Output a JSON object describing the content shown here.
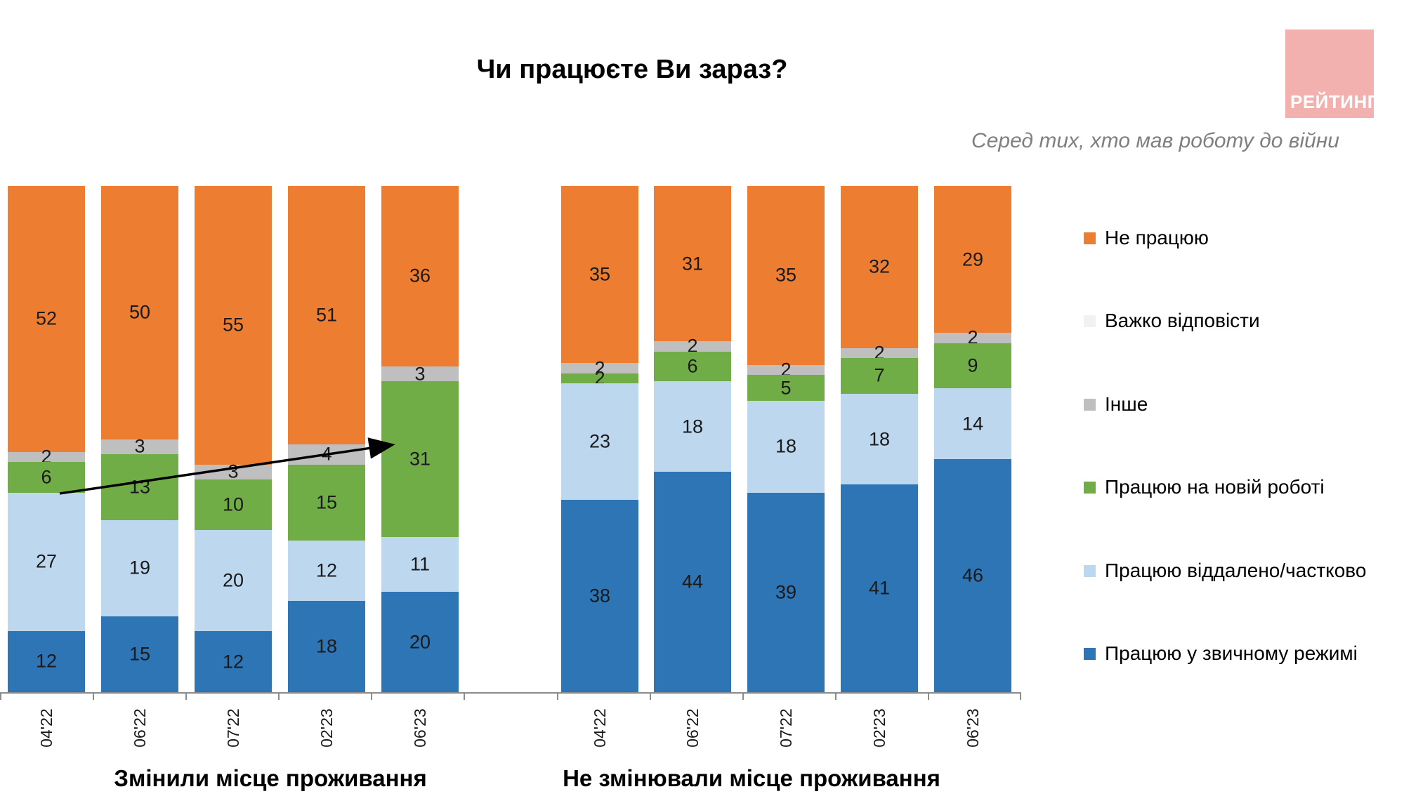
{
  "header": {
    "title": "Чи працюєте Ви зараз?",
    "subtitle": "Серед тих, хто мав роботу до війни",
    "logo_text": "РЕЙТИНГ"
  },
  "colors": {
    "not_working_orange": "#ED7D31",
    "hard_to_answer_white": "#F2F2F2",
    "other_gray": "#BFBFBF",
    "new_job_green": "#70AD47",
    "remote_light_blue": "#BDD7EE",
    "usual_blue": "#2E75B6",
    "logo_pink": "#F2B1AE",
    "subtitle_gray": "#7F7F7F",
    "axis_gray": "#8C8C8C"
  },
  "legend": [
    {
      "key": "not_working",
      "label": "Не працюю",
      "color": "#ED7D31"
    },
    {
      "key": "hard_to_answer",
      "label": "Важко відповісти",
      "color": "#F2F2F2"
    },
    {
      "key": "other",
      "label": "Інше",
      "color": "#BFBFBF"
    },
    {
      "key": "new_job",
      "label": "Працюю на новій роботі",
      "color": "#70AD47"
    },
    {
      "key": "remote",
      "label": "Працюю віддалено/частково",
      "color": "#BDD7EE"
    },
    {
      "key": "usual",
      "label": "Працюю у звичному режимі",
      "color": "#2E75B6"
    }
  ],
  "chart_data": {
    "type": "bar",
    "subtype": "stacked-100-percent",
    "unit": "%",
    "categories": [
      "04'22",
      "06'22",
      "07'22",
      "02'23",
      "06'23"
    ],
    "series_bottom_to_top": [
      {
        "key": "usual",
        "name": "Працюю у звичному режимі",
        "color": "#2E75B6"
      },
      {
        "key": "remote",
        "name": "Працюю віддалено/частково",
        "color": "#BDD7EE"
      },
      {
        "key": "new_job",
        "name": "Працюю на новій роботі",
        "color": "#70AD47"
      },
      {
        "key": "other",
        "name": "Інше",
        "color": "#BFBFBF"
      },
      {
        "key": "not_working",
        "name": "Не працюю",
        "color": "#ED7D31"
      }
    ],
    "groups": [
      {
        "title": "Змінили місце проживання",
        "categories": [
          "04'22",
          "06'22",
          "07'22",
          "02'23",
          "06'23"
        ],
        "values": {
          "usual": [
            12,
            15,
            12,
            18,
            20
          ],
          "remote": [
            27,
            19,
            20,
            12,
            11
          ],
          "new_job": [
            6,
            13,
            10,
            15,
            31
          ],
          "other": [
            2,
            3,
            3,
            4,
            3
          ],
          "not_working": [
            52,
            50,
            55,
            51,
            36
          ]
        }
      },
      {
        "title": "Не змінювали місце проживання",
        "categories": [
          "04'22",
          "06'22",
          "07'22",
          "02'23",
          "06'23"
        ],
        "values": {
          "usual": [
            38,
            44,
            39,
            41,
            46
          ],
          "remote": [
            23,
            18,
            18,
            18,
            14
          ],
          "new_job": [
            2,
            6,
            5,
            7,
            9
          ],
          "other": [
            2,
            2,
            2,
            2,
            2
          ],
          "not_working": [
            35,
            31,
            35,
            32,
            29
          ]
        }
      }
    ],
    "annotation": {
      "type": "arrow",
      "group": 0,
      "from_category": "04'22",
      "from_series": "Працюю на новій роботі",
      "from_value": 6,
      "to_category": "06'23",
      "to_series": "Працюю на новій роботі",
      "to_value": 31
    },
    "legend_position": "right",
    "grid": false
  }
}
